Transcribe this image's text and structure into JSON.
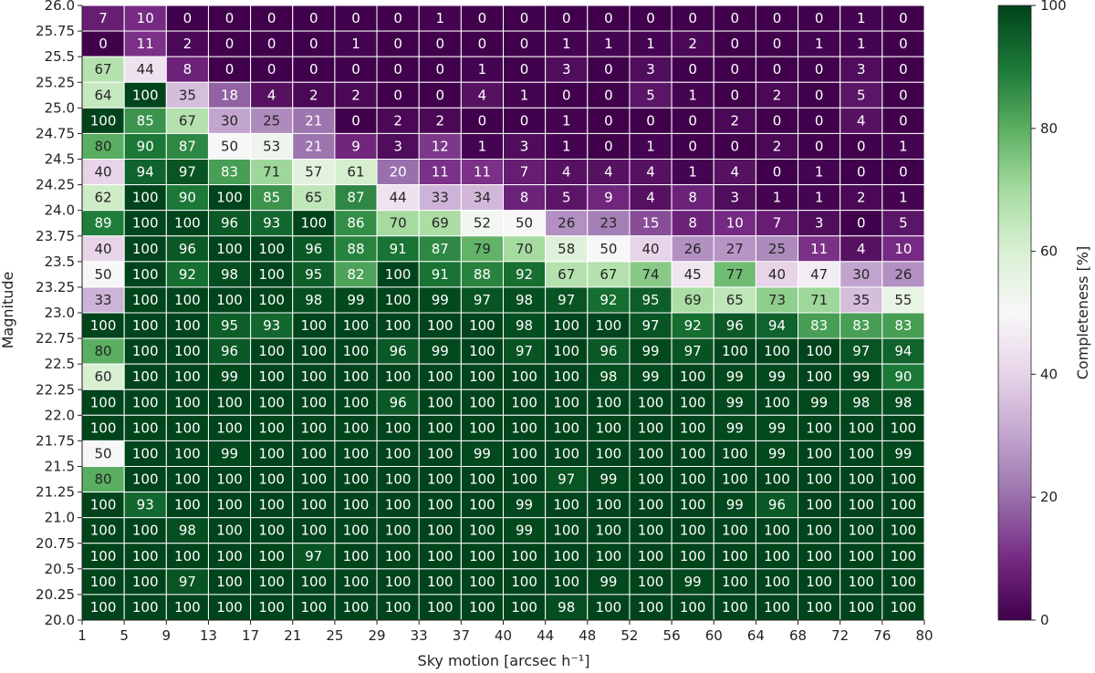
{
  "chart_data": {
    "type": "heatmap",
    "xlabel": "Sky motion [arcsec h⁻¹]",
    "ylabel": "Magnitude",
    "x_ticks": [
      "1",
      "5",
      "9",
      "13",
      "17",
      "21",
      "25",
      "29",
      "33",
      "37",
      "40",
      "44",
      "48",
      "52",
      "56",
      "60",
      "64",
      "68",
      "72",
      "76",
      "80"
    ],
    "y_ticks": [
      "20.0",
      "20.25",
      "20.5",
      "20.75",
      "21.0",
      "21.25",
      "21.5",
      "21.75",
      "22.0",
      "22.25",
      "22.5",
      "22.75",
      "23.0",
      "23.25",
      "23.5",
      "23.75",
      "24.0",
      "24.25",
      "24.5",
      "24.75",
      "25.0",
      "25.25",
      "25.5",
      "25.75",
      "26.0"
    ],
    "colorbar": {
      "label": "Completeness [%]",
      "range": [
        0,
        100
      ],
      "ticks": [
        "0",
        "20",
        "40",
        "60",
        "80",
        "100"
      ],
      "colormap": "PRGn",
      "low_color": "#40004b",
      "mid_color": "#f7f7f7",
      "high_color": "#00441b"
    },
    "rows_top_to_bottom": [
      [
        7,
        10,
        0,
        0,
        0,
        0,
        0,
        0,
        1,
        0,
        0,
        0,
        0,
        0,
        0,
        0,
        0,
        0,
        1,
        0
      ],
      [
        0,
        11,
        2,
        0,
        0,
        0,
        1,
        0,
        0,
        0,
        0,
        1,
        1,
        1,
        2,
        0,
        0,
        1,
        1,
        0
      ],
      [
        67,
        44,
        8,
        0,
        0,
        0,
        0,
        0,
        0,
        1,
        0,
        3,
        0,
        3,
        0,
        0,
        0,
        0,
        3,
        0
      ],
      [
        64,
        100,
        35,
        18,
        4,
        2,
        2,
        0,
        0,
        4,
        1,
        0,
        0,
        5,
        1,
        0,
        2,
        0,
        5,
        0
      ],
      [
        100,
        85,
        67,
        30,
        25,
        21,
        0,
        2,
        2,
        0,
        0,
        1,
        0,
        0,
        0,
        2,
        0,
        0,
        4,
        0
      ],
      [
        80,
        90,
        87,
        50,
        53,
        21,
        9,
        3,
        12,
        1,
        3,
        1,
        0,
        1,
        0,
        0,
        2,
        0,
        0,
        1
      ],
      [
        40,
        94,
        97,
        83,
        71,
        57,
        61,
        20,
        11,
        11,
        7,
        4,
        4,
        4,
        1,
        4,
        0,
        1,
        0,
        0
      ],
      [
        62,
        100,
        90,
        100,
        85,
        65,
        87,
        44,
        33,
        34,
        8,
        5,
        9,
        4,
        8,
        3,
        1,
        1,
        2,
        1
      ],
      [
        89,
        100,
        100,
        96,
        93,
        100,
        86,
        70,
        69,
        52,
        50,
        26,
        23,
        15,
        8,
        10,
        7,
        3,
        0,
        5
      ],
      [
        40,
        100,
        96,
        100,
        100,
        96,
        88,
        91,
        87,
        79,
        70,
        58,
        50,
        40,
        26,
        27,
        25,
        11,
        4,
        10
      ],
      [
        50,
        100,
        92,
        98,
        100,
        95,
        82,
        100,
        91,
        88,
        92,
        67,
        67,
        74,
        45,
        77,
        40,
        47,
        30,
        26
      ],
      [
        33,
        100,
        100,
        100,
        100,
        98,
        99,
        100,
        99,
        97,
        98,
        97,
        92,
        95,
        69,
        65,
        73,
        71,
        35,
        55
      ],
      [
        100,
        100,
        100,
        95,
        93,
        100,
        100,
        100,
        100,
        100,
        98,
        100,
        100,
        97,
        92,
        96,
        94,
        83,
        83,
        83
      ],
      [
        80,
        100,
        100,
        96,
        100,
        100,
        100,
        96,
        99,
        100,
        97,
        100,
        96,
        99,
        97,
        100,
        100,
        100,
        97,
        94
      ],
      [
        60,
        100,
        100,
        99,
        100,
        100,
        100,
        100,
        100,
        100,
        100,
        100,
        98,
        99,
        100,
        99,
        99,
        100,
        99,
        90
      ],
      [
        100,
        100,
        100,
        100,
        100,
        100,
        100,
        96,
        100,
        100,
        100,
        100,
        100,
        100,
        100,
        99,
        100,
        99,
        98,
        98
      ],
      [
        100,
        100,
        100,
        100,
        100,
        100,
        100,
        100,
        100,
        100,
        100,
        100,
        100,
        100,
        100,
        99,
        99,
        100,
        100,
        100
      ],
      [
        50,
        100,
        100,
        99,
        100,
        100,
        100,
        100,
        100,
        99,
        100,
        100,
        100,
        100,
        100,
        100,
        99,
        100,
        100,
        99
      ],
      [
        80,
        100,
        100,
        100,
        100,
        100,
        100,
        100,
        100,
        100,
        100,
        97,
        99,
        100,
        100,
        100,
        100,
        100,
        100,
        100
      ],
      [
        100,
        93,
        100,
        100,
        100,
        100,
        100,
        100,
        100,
        100,
        99,
        100,
        100,
        100,
        100,
        99,
        96,
        100,
        100,
        100
      ],
      [
        100,
        100,
        98,
        100,
        100,
        100,
        100,
        100,
        100,
        100,
        99,
        100,
        100,
        100,
        100,
        100,
        100,
        100,
        100,
        100
      ],
      [
        100,
        100,
        100,
        100,
        100,
        97,
        100,
        100,
        100,
        100,
        100,
        100,
        100,
        100,
        100,
        100,
        100,
        100,
        100,
        100
      ],
      [
        100,
        100,
        97,
        100,
        100,
        100,
        100,
        100,
        100,
        100,
        100,
        100,
        99,
        100,
        99,
        100,
        100,
        100,
        100,
        100
      ],
      [
        100,
        100,
        100,
        100,
        100,
        100,
        100,
        100,
        100,
        100,
        100,
        98,
        100,
        100,
        100,
        100,
        100,
        100,
        100,
        100
      ]
    ]
  }
}
